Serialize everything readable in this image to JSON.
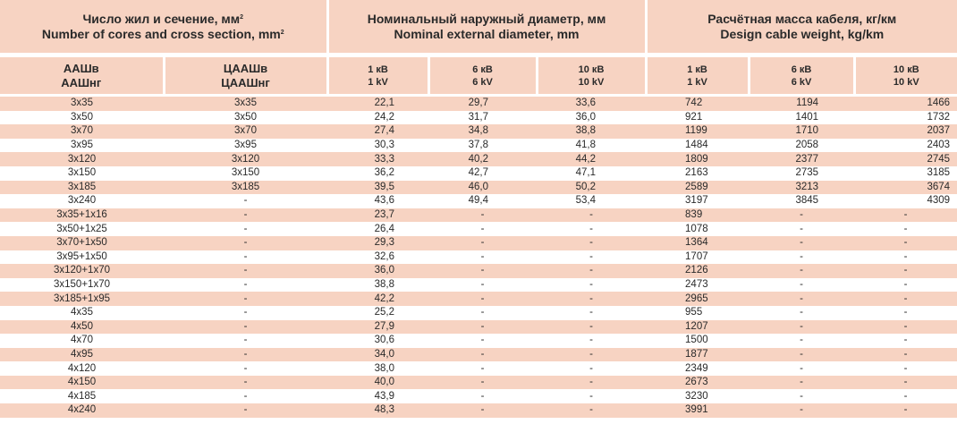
{
  "header": {
    "group1_ru": "Число жил и сечение, мм",
    "group1_en": "Number of cores and  cross section, mm",
    "group1_sup": "2",
    "group2_ru": "Номинальный наружный диаметр, мм",
    "group2_en": "Nominal external diameter, mm",
    "group3_ru": "Расчётная масса кабеля, кг/км",
    "group3_en": "Design cable weight, kg/km"
  },
  "subheader": {
    "col1_a": "ААШв",
    "col1_b": "ААШнг",
    "col2_a": "ЦААШв",
    "col2_b": "ЦААШнг",
    "v1_ru": "1 кВ",
    "v1_en": "1 kV",
    "v6_ru": "6 кВ",
    "v6_en": "6 kV",
    "v10_ru": "10 кВ",
    "v10_en": "10 kV"
  },
  "rows": [
    [
      "3x35",
      "3x35",
      "22,1",
      "29,7",
      "33,6",
      "742",
      "1194",
      "1466"
    ],
    [
      "3x50",
      "3x50",
      "24,2",
      "31,7",
      "36,0",
      "921",
      "1401",
      "1732"
    ],
    [
      "3x70",
      "3x70",
      "27,4",
      "34,8",
      "38,8",
      "1199",
      "1710",
      "2037"
    ],
    [
      "3x95",
      "3x95",
      "30,3",
      "37,8",
      "41,8",
      "1484",
      "2058",
      "2403"
    ],
    [
      "3x120",
      "3x120",
      "33,3",
      "40,2",
      "44,2",
      "1809",
      "2377",
      "2745"
    ],
    [
      "3x150",
      "3x150",
      "36,2",
      "42,7",
      "47,1",
      "2163",
      "2735",
      "3185"
    ],
    [
      "3x185",
      "3x185",
      "39,5",
      "46,0",
      "50,2",
      "2589",
      "3213",
      "3674"
    ],
    [
      "3x240",
      "-",
      "43,6",
      "49,4",
      "53,4",
      "3197",
      "3845",
      "4309"
    ],
    [
      "3x35+1x16",
      "-",
      "23,7",
      "-",
      "-",
      "839",
      "-",
      "-"
    ],
    [
      "3x50+1x25",
      "-",
      "26,4",
      "-",
      "-",
      "1078",
      "-",
      "-"
    ],
    [
      "3x70+1x50",
      "-",
      "29,3",
      "-",
      "-",
      "1364",
      "-",
      "-"
    ],
    [
      "3x95+1x50",
      "-",
      "32,6",
      "-",
      "-",
      "1707",
      "-",
      "-"
    ],
    [
      "3x120+1x70",
      "-",
      "36,0",
      "-",
      "-",
      "2126",
      "-",
      "-"
    ],
    [
      "3x150+1x70",
      "-",
      "38,8",
      "-",
      "-",
      "2473",
      "-",
      "-"
    ],
    [
      "3x185+1x95",
      "-",
      "42,2",
      "-",
      "-",
      "2965",
      "-",
      "-"
    ],
    [
      "4x35",
      "-",
      "25,2",
      "-",
      "-",
      "955",
      "-",
      "-"
    ],
    [
      "4x50",
      "-",
      "27,9",
      "-",
      "-",
      "1207",
      "-",
      "-"
    ],
    [
      "4x70",
      "-",
      "30,6",
      "-",
      "-",
      "1500",
      "-",
      "-"
    ],
    [
      "4x95",
      "-",
      "34,0",
      "-",
      "-",
      "1877",
      "-",
      "-"
    ],
    [
      "4x120",
      "-",
      "38,0",
      "-",
      "-",
      "2349",
      "-",
      "-"
    ],
    [
      "4x150",
      "-",
      "40,0",
      "-",
      "-",
      "2673",
      "-",
      "-"
    ],
    [
      "4x185",
      "-",
      "43,9",
      "-",
      "-",
      "3230",
      "-",
      "-"
    ],
    [
      "4x240",
      "-",
      "48,3",
      "-",
      "-",
      "3991",
      "-",
      "-"
    ]
  ]
}
